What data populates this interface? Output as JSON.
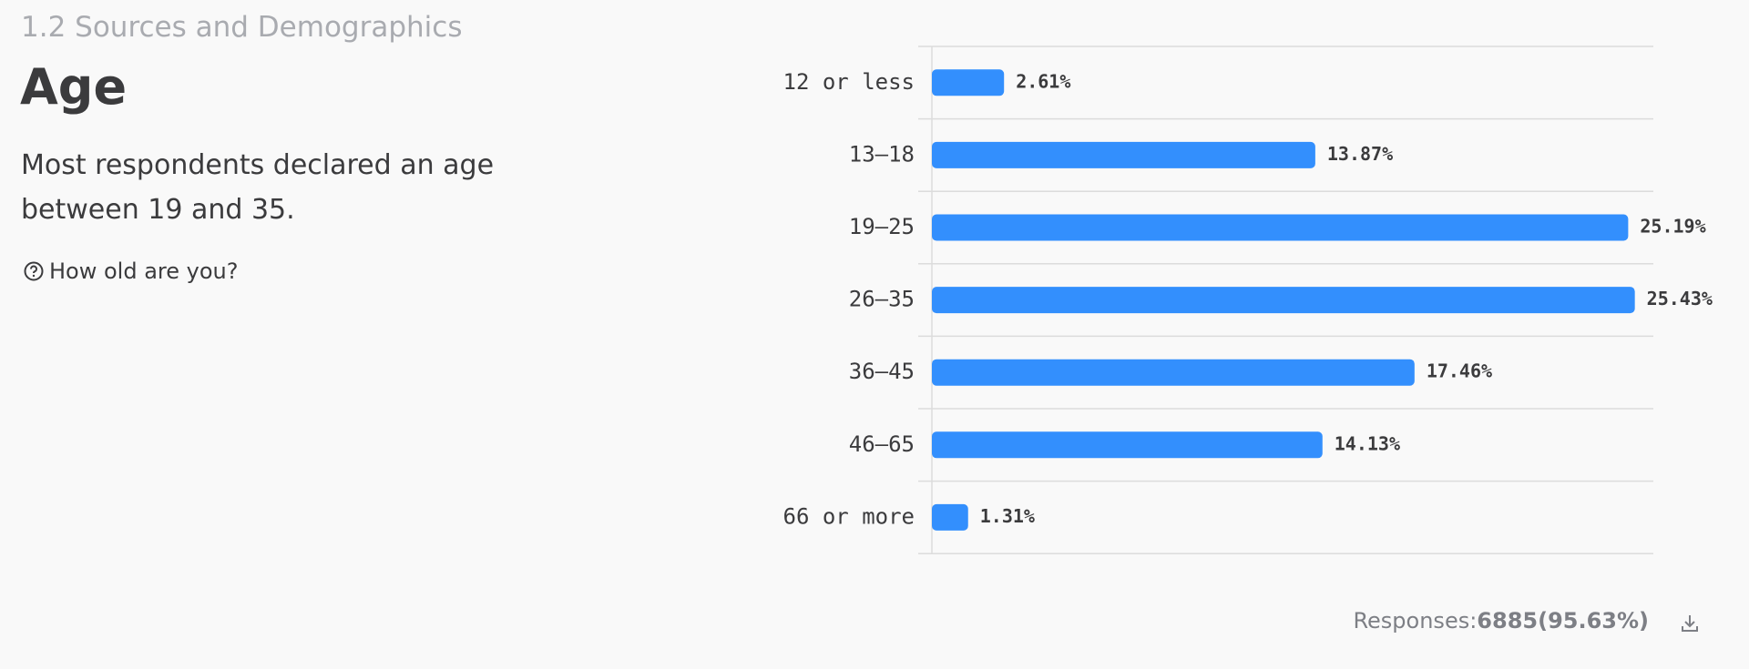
{
  "section": "1.2 Sources and Demographics",
  "heading": "Age",
  "description": "Most respondents declared an age between 19 and 35.",
  "question": "How old are you?",
  "chart_data": {
    "type": "bar",
    "orientation": "horizontal",
    "categories": [
      "12 or less",
      "13–18",
      "19–25",
      "26–35",
      "36–45",
      "46–65",
      "66 or more"
    ],
    "values": [
      2.61,
      13.87,
      25.19,
      25.43,
      17.46,
      14.13,
      1.31
    ],
    "value_labels": [
      "2.61%",
      "13.87%",
      "25.19%",
      "25.43%",
      "17.46%",
      "14.13%",
      "1.31%"
    ],
    "color": "#338ffd",
    "xlim": [
      0,
      26.1
    ]
  },
  "footer": {
    "label": "Responses:",
    "value": "6885(95.63%)"
  }
}
